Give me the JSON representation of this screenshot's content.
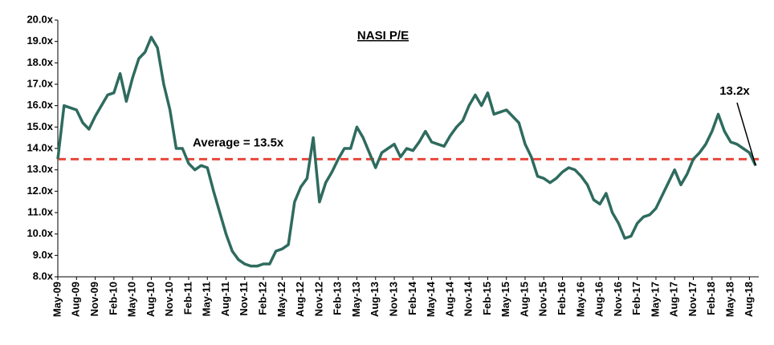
{
  "chart_data": {
    "type": "line",
    "title": "NASI P/E",
    "categories": [
      "May-09",
      null,
      null,
      "Aug-09",
      null,
      null,
      "Nov-09",
      null,
      null,
      "Feb-10",
      null,
      null,
      "May-10",
      null,
      null,
      "Aug-10",
      null,
      null,
      "Nov-10",
      null,
      null,
      "Feb-11",
      null,
      null,
      "May-11",
      null,
      null,
      "Aug-11",
      null,
      null,
      "Nov-11",
      null,
      null,
      "Feb-12",
      null,
      null,
      "May-12",
      null,
      null,
      "Aug-12",
      null,
      null,
      "Nov-12",
      null,
      null,
      "Feb-13",
      null,
      null,
      "May-13",
      null,
      null,
      "Aug-13",
      null,
      null,
      "Nov-13",
      null,
      null,
      "Feb-14",
      null,
      null,
      "May-14",
      null,
      null,
      "Aug-14",
      null,
      null,
      "Nov-14",
      null,
      null,
      "Feb-15",
      null,
      null,
      "May-15",
      null,
      null,
      "Aug-15",
      null,
      null,
      "Nov-15",
      null,
      null,
      "Feb-16",
      null,
      null,
      "May-16",
      null,
      null,
      "Aug-16",
      null,
      null,
      "Nov-16",
      null,
      null,
      "Feb-17",
      null,
      null,
      "May-17",
      null,
      null,
      "Aug-17",
      null,
      null,
      "Nov-17",
      null,
      null,
      "Feb-18",
      null,
      null,
      "May-18",
      null,
      null,
      "Aug-18",
      null
    ],
    "series": [
      {
        "name": "NASI P/E",
        "color": "#2e6b5e",
        "values": [
          13.5,
          16.0,
          15.9,
          15.8,
          15.2,
          14.9,
          15.5,
          16.0,
          16.5,
          16.6,
          17.5,
          16.2,
          17.3,
          18.2,
          18.5,
          19.2,
          18.7,
          17.0,
          15.8,
          14.0,
          14.0,
          13.3,
          13.0,
          13.2,
          13.1,
          12.0,
          11.0,
          10.0,
          9.2,
          8.8,
          8.6,
          8.5,
          8.5,
          8.6,
          8.6,
          9.2,
          9.3,
          9.5,
          11.5,
          12.2,
          12.6,
          14.5,
          11.5,
          12.4,
          12.9,
          13.5,
          14.0,
          14.0,
          15.0,
          14.5,
          13.8,
          13.1,
          13.8,
          14.0,
          14.2,
          13.6,
          14.0,
          13.9,
          14.3,
          14.8,
          14.3,
          14.2,
          14.1,
          14.6,
          15.0,
          15.3,
          16.0,
          16.5,
          16.0,
          16.6,
          15.6,
          15.7,
          15.8,
          15.5,
          15.2,
          14.2,
          13.6,
          12.7,
          12.6,
          12.4,
          12.6,
          12.9,
          13.1,
          13.0,
          12.7,
          12.3,
          11.6,
          11.4,
          11.9,
          11.0,
          10.5,
          9.8,
          9.9,
          10.5,
          10.8,
          10.9,
          11.2,
          11.8,
          12.4,
          13.0,
          12.3,
          12.8,
          13.5,
          13.8,
          14.2,
          14.8,
          15.6,
          14.8,
          14.3,
          14.2,
          14.0,
          13.8,
          13.2
        ]
      }
    ],
    "average": {
      "value": 13.5,
      "label": "Average = 13.5x",
      "color": "#e8473a"
    },
    "last_label": {
      "value": 13.2,
      "label": "13.2x"
    },
    "ylim": [
      8,
      20
    ],
    "yticks": [
      {
        "value": 8,
        "label": "8.0x"
      },
      {
        "value": 9,
        "label": "9.0x"
      },
      {
        "value": 10,
        "label": "10.0x"
      },
      {
        "value": 11,
        "label": "11.0x"
      },
      {
        "value": 12,
        "label": "12.0x"
      },
      {
        "value": 13,
        "label": "13.0x"
      },
      {
        "value": 14,
        "label": "14.0x"
      },
      {
        "value": 15,
        "label": "15.0x"
      },
      {
        "value": 16,
        "label": "16.0x"
      },
      {
        "value": 17,
        "label": "17.0x"
      },
      {
        "value": 18,
        "label": "18.0x"
      },
      {
        "value": 19,
        "label": "19.0x"
      },
      {
        "value": 20,
        "label": "20.0x"
      }
    ]
  }
}
